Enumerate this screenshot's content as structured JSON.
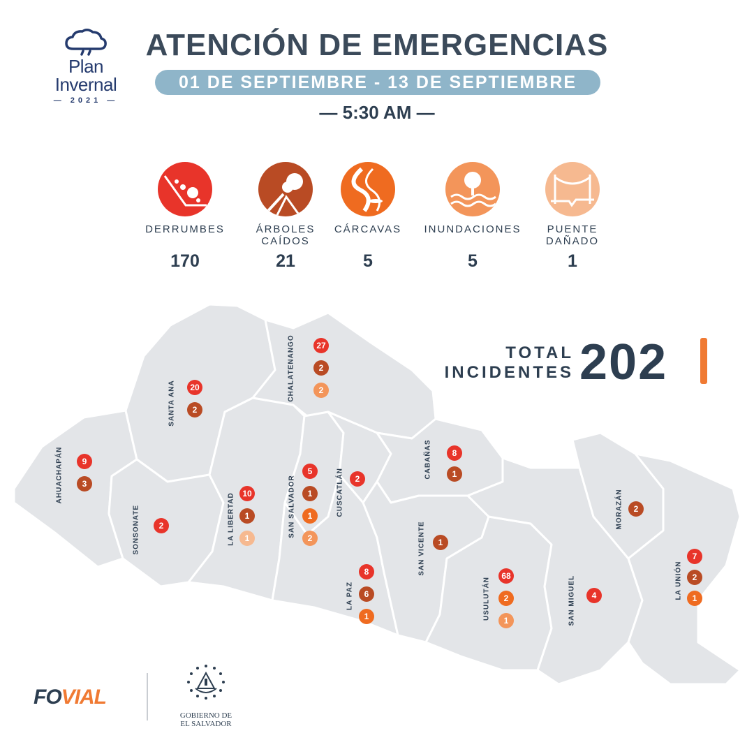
{
  "logo": {
    "line1": "Plan",
    "line2": "Invernal",
    "year": "2021"
  },
  "header": {
    "title": "ATENCIÓN DE EMERGENCIAS",
    "date_range": "01 DE SEPTIEMBRE - 13 DE SEPTIEMBRE",
    "time": "— 5:30 AM —"
  },
  "categories": [
    {
      "label_1": "DERRUMBES",
      "label_2": "",
      "value": "170",
      "icon": "landslide-icon",
      "color": "#e8342a"
    },
    {
      "label_1": "ÁRBOLES",
      "label_2": "CAÍDOS",
      "value": "21",
      "icon": "fallen-tree-icon",
      "color": "#b94b24"
    },
    {
      "label_1": "CÁRCAVAS",
      "label_2": "",
      "value": "5",
      "icon": "gully-icon",
      "color": "#ef6b20"
    },
    {
      "label_1": "INUNDACIONES",
      "label_2": "",
      "value": "5",
      "icon": "flood-icon",
      "color": "#f3955a"
    },
    {
      "label_1": "PUENTE",
      "label_2": "DAÑADO",
      "value": "1",
      "icon": "damaged-bridge-icon",
      "color": "#f6b990"
    }
  ],
  "total": {
    "label_1": "TOTAL",
    "label_2": "INCIDENTES",
    "value": "202",
    "accent": "#f07a33"
  },
  "colors": {
    "derrumbes": "#e8342a",
    "arboles": "#b94b24",
    "carcavas": "#ef6b20",
    "inundaciones": "#f3955a",
    "puente": "#f6b990",
    "map_fill": "#e3e5e8",
    "map_border": "#ffffff"
  },
  "departments": [
    {
      "name": "AHUACHAPÁN",
      "badges": [
        {
          "value": "9",
          "type": "derrumbes"
        },
        {
          "value": "3",
          "type": "arboles"
        }
      ]
    },
    {
      "name": "SANTA ANA",
      "badges": [
        {
          "value": "20",
          "type": "derrumbes"
        },
        {
          "value": "2",
          "type": "arboles"
        }
      ]
    },
    {
      "name": "SONSONATE",
      "badges": [
        {
          "value": "2",
          "type": "derrumbes"
        }
      ]
    },
    {
      "name": "CHALATENANGO",
      "badges": [
        {
          "value": "27",
          "type": "derrumbes"
        },
        {
          "value": "2",
          "type": "arboles"
        },
        {
          "value": "2",
          "type": "inundaciones"
        }
      ]
    },
    {
      "name": "LA LIBERTAD",
      "badges": [
        {
          "value": "10",
          "type": "derrumbes"
        },
        {
          "value": "1",
          "type": "arboles"
        },
        {
          "value": "1",
          "type": "puente"
        }
      ]
    },
    {
      "name": "SAN SALVADOR",
      "badges": [
        {
          "value": "5",
          "type": "derrumbes"
        },
        {
          "value": "1",
          "type": "arboles"
        },
        {
          "value": "1",
          "type": "carcavas"
        },
        {
          "value": "2",
          "type": "inundaciones"
        }
      ]
    },
    {
      "name": "CUSCATLÁN",
      "badges": [
        {
          "value": "2",
          "type": "derrumbes"
        }
      ]
    },
    {
      "name": "LA PAZ",
      "badges": [
        {
          "value": "8",
          "type": "derrumbes"
        },
        {
          "value": "6",
          "type": "arboles"
        },
        {
          "value": "1",
          "type": "carcavas"
        }
      ]
    },
    {
      "name": "CABAÑAS",
      "badges": [
        {
          "value": "8",
          "type": "derrumbes"
        },
        {
          "value": "1",
          "type": "arboles"
        }
      ]
    },
    {
      "name": "SAN VICENTE",
      "badges": [
        {
          "value": "1",
          "type": "arboles"
        }
      ]
    },
    {
      "name": "USULUTÁN",
      "badges": [
        {
          "value": "68",
          "type": "derrumbes"
        },
        {
          "value": "2",
          "type": "carcavas"
        },
        {
          "value": "1",
          "type": "inundaciones"
        }
      ]
    },
    {
      "name": "SAN MIGUEL",
      "badges": [
        {
          "value": "4",
          "type": "derrumbes"
        }
      ]
    },
    {
      "name": "MORAZÁN",
      "badges": [
        {
          "value": "2",
          "type": "arboles"
        }
      ]
    },
    {
      "name": "LA UNIÓN",
      "badges": [
        {
          "value": "7",
          "type": "derrumbes"
        },
        {
          "value": "2",
          "type": "arboles"
        },
        {
          "value": "1",
          "type": "carcavas"
        }
      ]
    }
  ],
  "footer": {
    "fovial_fo": "FO",
    "fovial_vial": "VIAL",
    "gobierno_line1": "GOBIERNO DE",
    "gobierno_line2": "EL SALVADOR"
  }
}
